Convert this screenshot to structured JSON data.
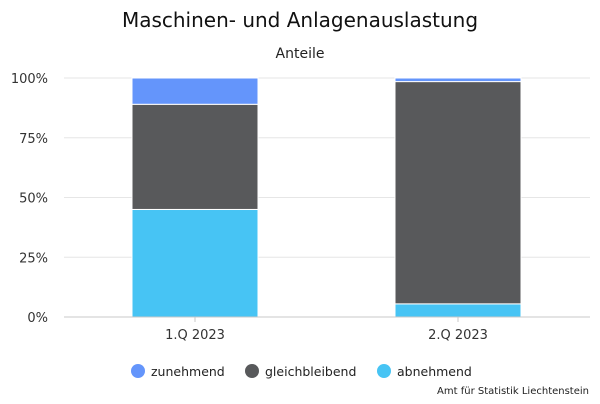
{
  "chart_data": {
    "type": "bar",
    "stacked": true,
    "percent": true,
    "title": "Maschinen- und Anlagenauslastung",
    "subtitle": "Anteile",
    "categories": [
      "1.Q 2023",
      "2.Q 2023"
    ],
    "series": [
      {
        "name": "abnehmend",
        "color": "#47c4f4",
        "values": [
          45,
          5.5
        ]
      },
      {
        "name": "gleichbleibend",
        "color": "#58595b",
        "values": [
          44,
          93
        ]
      },
      {
        "name": "zunehmend",
        "color": "#6495fb",
        "values": [
          11,
          1.5
        ]
      }
    ],
    "legend_order": [
      "zunehmend",
      "gleichbleibend",
      "abnehmend"
    ],
    "ylim": [
      0,
      100
    ],
    "yticks": [
      "0%",
      "25%",
      "50%",
      "75%",
      "100%"
    ],
    "grid": true,
    "legend_position": "bottom",
    "credit": "Amt für Statistik Liechtenstein"
  }
}
